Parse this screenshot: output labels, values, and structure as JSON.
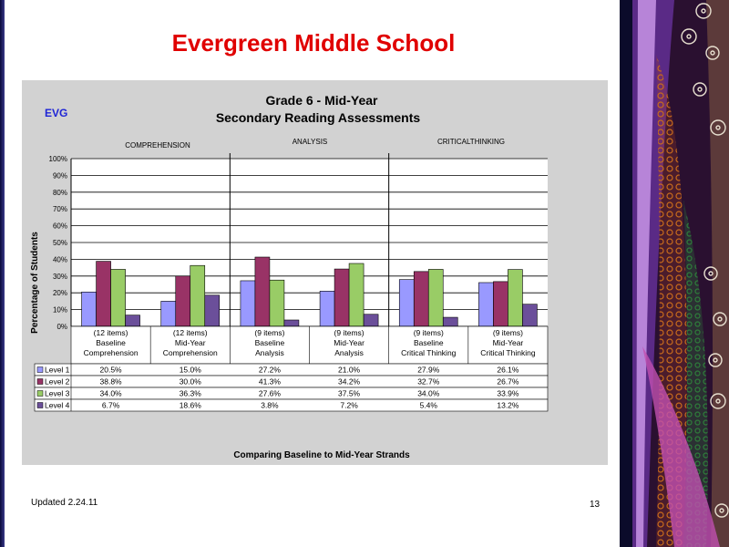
{
  "slide": {
    "title": "Evergreen Middle School",
    "updated": "Updated  2.24.11",
    "page_number": "13"
  },
  "colors": {
    "title": "#e00000",
    "level1": "#9999ff",
    "level2": "#993366",
    "level3": "#99cc66",
    "level4": "#6b4f9a",
    "plot_bg": "#ffffff",
    "chart_bg": "#d2d2d2",
    "evg_label": "#1f25d6"
  },
  "chart_data": {
    "type": "bar",
    "tag": "EVG",
    "title": "Grade 6 - Mid-Year",
    "subtitle": "Secondary Reading Assessments",
    "section_labels": [
      "COMPREHENSION",
      "ANALYSIS",
      "CRITICALTHINKING"
    ],
    "ylabel": "Percentage of Students",
    "xlabel": "Comparing Baseline to Mid-Year Strands",
    "ylim": [
      0,
      100
    ],
    "yticks": [
      "0%",
      "10%",
      "20%",
      "30%",
      "40%",
      "50%",
      "60%",
      "70%",
      "80%",
      "90%",
      "100%"
    ],
    "grid": true,
    "legend": "data table rows",
    "categories": [
      [
        "(12 items)",
        "Baseline",
        "Comprehension"
      ],
      [
        "(12 items)",
        "Mid-Year",
        "Comprehension"
      ],
      [
        "(9 items)",
        "Baseline",
        "Analysis"
      ],
      [
        "(9 items)",
        "Mid-Year",
        "Analysis"
      ],
      [
        "(9 items)",
        "Baseline",
        "Critical Thinking"
      ],
      [
        "(9 items)",
        "Mid-Year",
        "Critical Thinking"
      ]
    ],
    "series": [
      {
        "name": "Level 1",
        "values": [
          20.5,
          15.0,
          27.2,
          21.0,
          27.9,
          26.1
        ],
        "labels": [
          "20.5%",
          "15.0%",
          "27.2%",
          "21.0%",
          "27.9%",
          "26.1%"
        ]
      },
      {
        "name": "Level 2",
        "values": [
          38.8,
          30.0,
          41.3,
          34.2,
          32.7,
          26.7
        ],
        "labels": [
          "38.8%",
          "30.0%",
          "41.3%",
          "34.2%",
          "32.7%",
          "26.7%"
        ]
      },
      {
        "name": "Level 3",
        "values": [
          34.0,
          36.3,
          27.6,
          37.5,
          34.0,
          33.9
        ],
        "labels": [
          "34.0%",
          "36.3%",
          "27.6%",
          "37.5%",
          "34.0%",
          "33.9%"
        ]
      },
      {
        "name": "Level 4",
        "values": [
          6.7,
          18.6,
          3.8,
          7.2,
          5.4,
          13.2
        ],
        "labels": [
          "6.7%",
          "18.6%",
          "3.8%",
          "7.2%",
          "5.4%",
          "13.2%"
        ]
      }
    ]
  }
}
